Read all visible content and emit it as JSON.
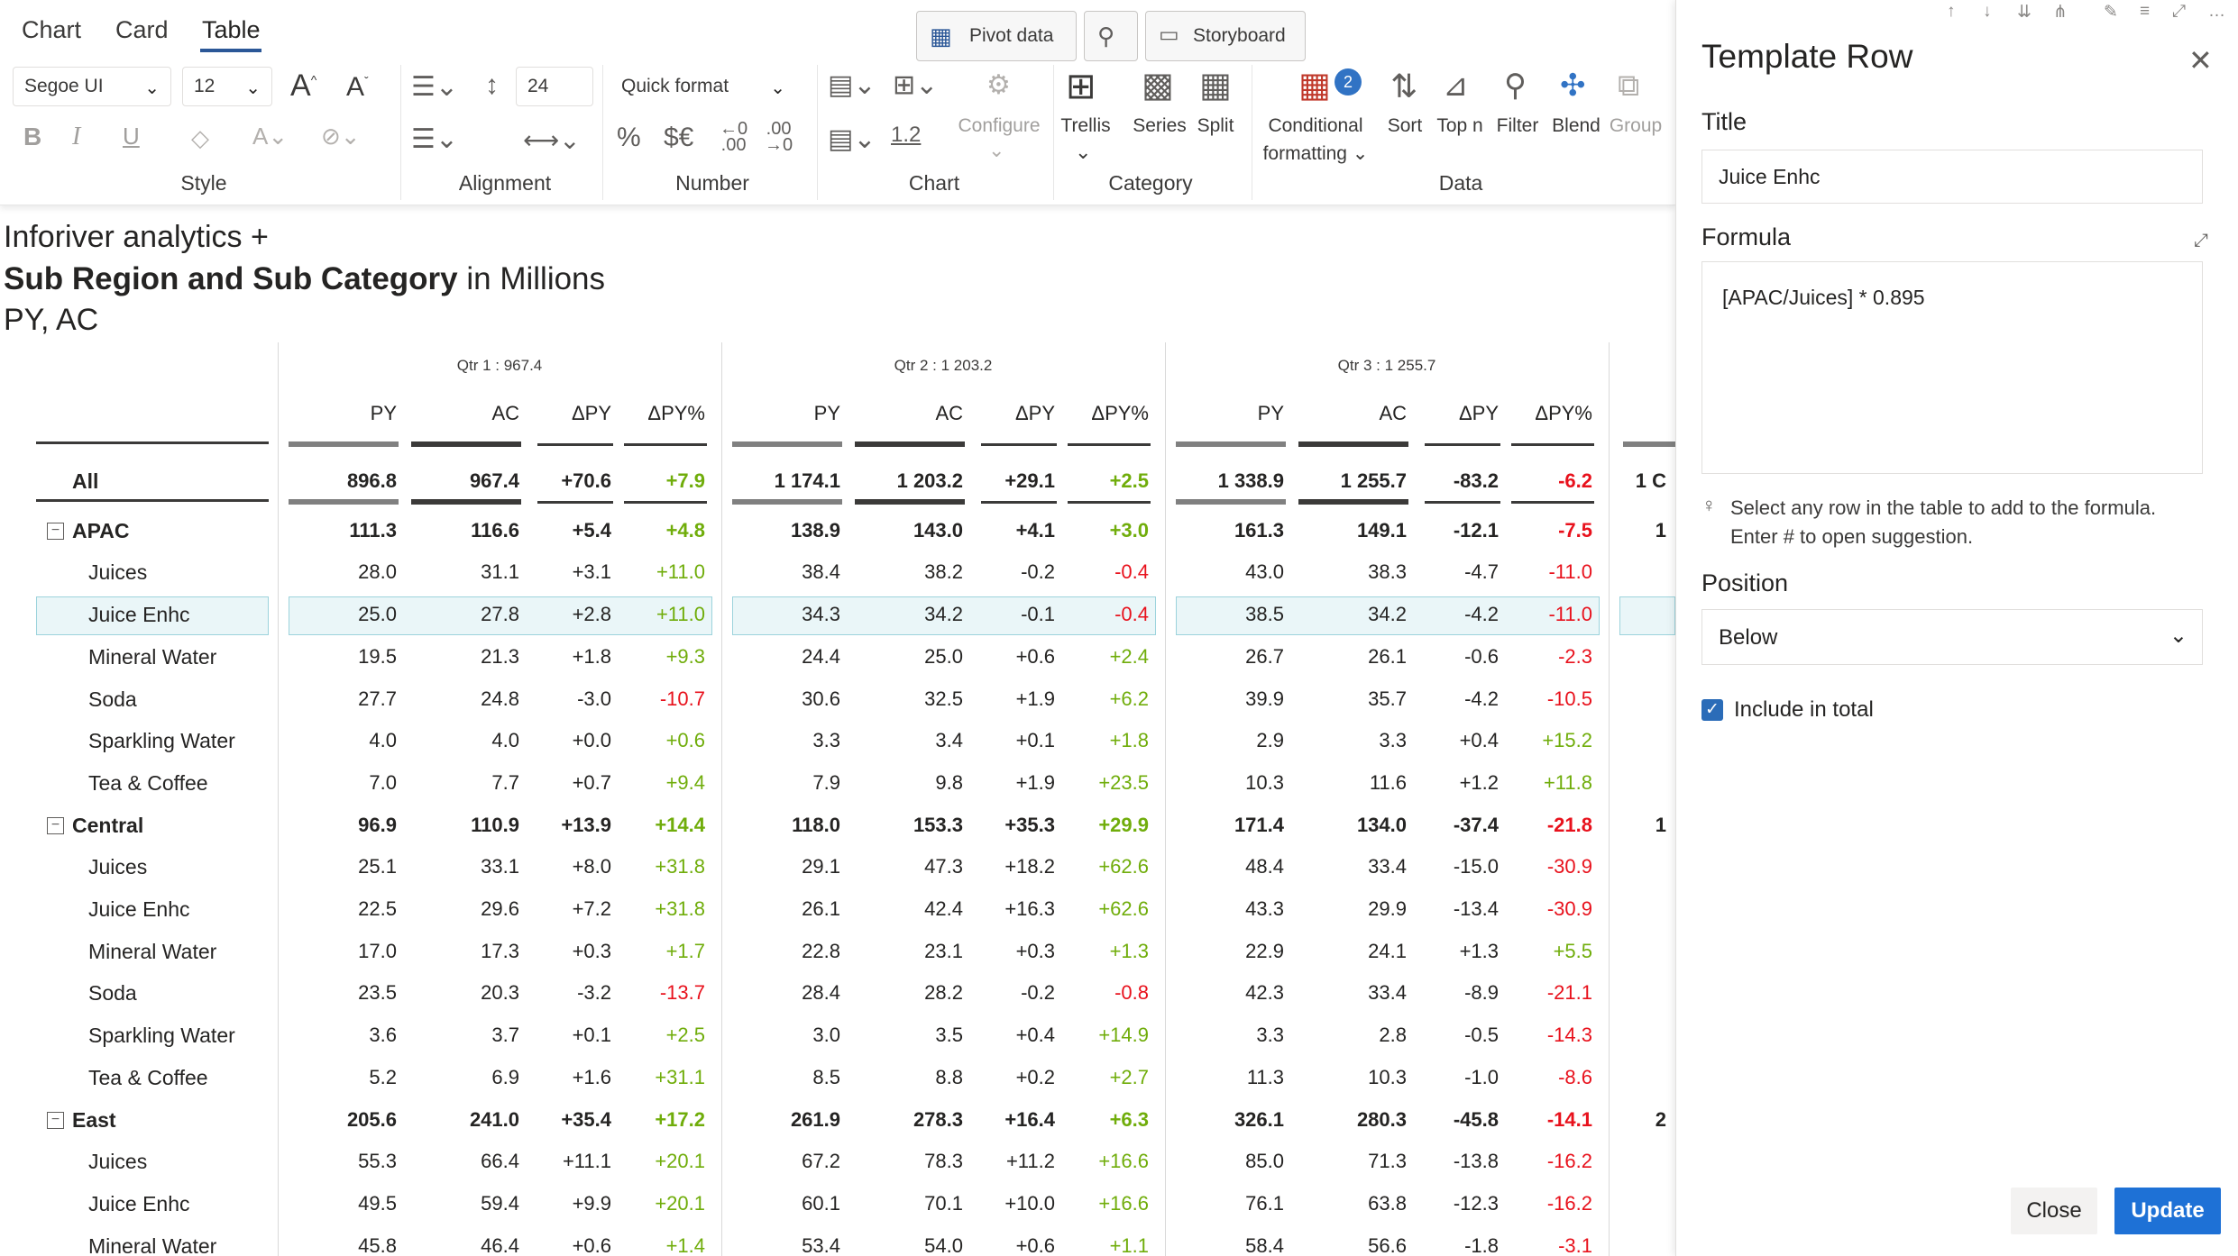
{
  "tabs": [
    "Chart",
    "Card",
    "Table"
  ],
  "style": {
    "font_family": "Segoe UI",
    "font_size": "12",
    "label": "Style"
  },
  "alignment": {
    "row_height": "24",
    "label": "Alignment"
  },
  "number": {
    "quick_format": "Quick format",
    "percent": "%",
    "currency": "$€",
    "dec_add": ".00",
    "dec_remove": ".00",
    "label": "Number"
  },
  "chart": {
    "pivot_data": "Pivot data",
    "storyboard": "Storyboard",
    "configure": "Configure",
    "scale": "1.2",
    "label": "Chart"
  },
  "category": {
    "trellis": "Trellis",
    "series": "Series",
    "split": "Split",
    "label": "Category"
  },
  "data_group": {
    "conditional_formatting_1": "Conditional",
    "conditional_formatting_2": "formatting",
    "cf_badge": "2",
    "sort": "Sort",
    "topn": "Top n",
    "filter": "Filter",
    "blend": "Blend",
    "group": "Group",
    "label": "Data"
  },
  "report": {
    "line1": "Inforiver analytics +",
    "line2_bold": "Sub Region and Sub Category",
    "line2_rest": " in Millions",
    "line3": "PY, AC"
  },
  "table": {
    "quarters": [
      "Qtr 1 :  967.4",
      "Qtr 2 :  1 203.2",
      "Qtr 3 :  1 255.7"
    ],
    "columns": [
      "PY",
      "AC",
      "ΔPY",
      "ΔPY%"
    ],
    "rows": [
      {
        "label": "All",
        "bold": true,
        "cells": [
          "896.8",
          "967.4",
          "+70.6",
          "+7.9",
          "1 174.1",
          "1 203.2",
          "+29.1",
          "+2.5",
          "1 338.9",
          "1 255.7",
          "-83.2",
          "-6.2"
        ],
        "partial": "1 C"
      },
      {
        "label": "APAC",
        "bold": true,
        "collapse": true,
        "cells": [
          "111.3",
          "116.6",
          "+5.4",
          "+4.8",
          "138.9",
          "143.0",
          "+4.1",
          "+3.0",
          "161.3",
          "149.1",
          "-12.1",
          "-7.5"
        ],
        "partial": "1"
      },
      {
        "label": "Juices",
        "cells": [
          "28.0",
          "31.1",
          "+3.1",
          "+11.0",
          "38.4",
          "38.2",
          "-0.2",
          "-0.4",
          "43.0",
          "38.3",
          "-4.7",
          "-11.0"
        ]
      },
      {
        "label": "Juice Enhc",
        "selected": true,
        "cells": [
          "25.0",
          "27.8",
          "+2.8",
          "+11.0",
          "34.3",
          "34.2",
          "-0.1",
          "-0.4",
          "38.5",
          "34.2",
          "-4.2",
          "-11.0"
        ]
      },
      {
        "label": "Mineral Water",
        "cells": [
          "19.5",
          "21.3",
          "+1.8",
          "+9.3",
          "24.4",
          "25.0",
          "+0.6",
          "+2.4",
          "26.7",
          "26.1",
          "-0.6",
          "-2.3"
        ]
      },
      {
        "label": "Soda",
        "cells": [
          "27.7",
          "24.8",
          "-3.0",
          "-10.7",
          "30.6",
          "32.5",
          "+1.9",
          "+6.2",
          "39.9",
          "35.7",
          "-4.2",
          "-10.5"
        ]
      },
      {
        "label": "Sparkling Water",
        "cells": [
          "4.0",
          "4.0",
          "+0.0",
          "+0.6",
          "3.3",
          "3.4",
          "+0.1",
          "+1.8",
          "2.9",
          "3.3",
          "+0.4",
          "+15.2"
        ]
      },
      {
        "label": "Tea & Coffee",
        "cells": [
          "7.0",
          "7.7",
          "+0.7",
          "+9.4",
          "7.9",
          "9.8",
          "+1.9",
          "+23.5",
          "10.3",
          "11.6",
          "+1.2",
          "+11.8"
        ]
      },
      {
        "label": "Central",
        "bold": true,
        "collapse": true,
        "cells": [
          "96.9",
          "110.9",
          "+13.9",
          "+14.4",
          "118.0",
          "153.3",
          "+35.3",
          "+29.9",
          "171.4",
          "134.0",
          "-37.4",
          "-21.8"
        ],
        "partial": "1"
      },
      {
        "label": "Juices",
        "cells": [
          "25.1",
          "33.1",
          "+8.0",
          "+31.8",
          "29.1",
          "47.3",
          "+18.2",
          "+62.6",
          "48.4",
          "33.4",
          "-15.0",
          "-30.9"
        ]
      },
      {
        "label": "Juice Enhc",
        "cells": [
          "22.5",
          "29.6",
          "+7.2",
          "+31.8",
          "26.1",
          "42.4",
          "+16.3",
          "+62.6",
          "43.3",
          "29.9",
          "-13.4",
          "-30.9"
        ]
      },
      {
        "label": "Mineral Water",
        "cells": [
          "17.0",
          "17.3",
          "+0.3",
          "+1.7",
          "22.8",
          "23.1",
          "+0.3",
          "+1.3",
          "22.9",
          "24.1",
          "+1.3",
          "+5.5"
        ]
      },
      {
        "label": "Soda",
        "cells": [
          "23.5",
          "20.3",
          "-3.2",
          "-13.7",
          "28.4",
          "28.2",
          "-0.2",
          "-0.8",
          "42.3",
          "33.4",
          "-8.9",
          "-21.1"
        ]
      },
      {
        "label": "Sparkling Water",
        "cells": [
          "3.6",
          "3.7",
          "+0.1",
          "+2.5",
          "3.0",
          "3.5",
          "+0.4",
          "+14.9",
          "3.3",
          "2.8",
          "-0.5",
          "-14.3"
        ]
      },
      {
        "label": "Tea & Coffee",
        "cells": [
          "5.2",
          "6.9",
          "+1.6",
          "+31.1",
          "8.5",
          "8.8",
          "+0.2",
          "+2.7",
          "11.3",
          "10.3",
          "-1.0",
          "-8.6"
        ]
      },
      {
        "label": "East",
        "bold": true,
        "collapse": true,
        "cells": [
          "205.6",
          "241.0",
          "+35.4",
          "+17.2",
          "261.9",
          "278.3",
          "+16.4",
          "+6.3",
          "326.1",
          "280.3",
          "-45.8",
          "-14.1"
        ],
        "partial": "2"
      },
      {
        "label": "Juices",
        "cells": [
          "55.3",
          "66.4",
          "+11.1",
          "+20.1",
          "67.2",
          "78.3",
          "+11.2",
          "+16.6",
          "85.0",
          "71.3",
          "-13.8",
          "-16.2"
        ]
      },
      {
        "label": "Juice Enhc",
        "cells": [
          "49.5",
          "59.4",
          "+9.9",
          "+20.1",
          "60.1",
          "70.1",
          "+10.0",
          "+16.6",
          "76.1",
          "63.8",
          "-12.3",
          "-16.2"
        ]
      },
      {
        "label": "Mineral Water",
        "cells": [
          "45.8",
          "46.4",
          "+0.6",
          "+1.4",
          "53.4",
          "54.0",
          "+0.6",
          "+1.1",
          "58.4",
          "56.6",
          "-1.8",
          "-3.1"
        ]
      }
    ]
  },
  "panel": {
    "title": "Template Row",
    "title_label": "Title",
    "title_value": "Juice Enhc",
    "formula_label": "Formula",
    "formula_value": "[APAC/Juices] * 0.895",
    "hint": "Select any row in the table to add to the formula. Enter # to open suggestion.",
    "position_label": "Position",
    "position_value": "Below",
    "include_total": "Include in total",
    "close_btn": "Close",
    "update_btn": "Update"
  },
  "colors": {
    "positive": "#70ad0b",
    "negative": "#e8111c",
    "accent": "#1e71d6",
    "selection": "#eaf6f8"
  }
}
